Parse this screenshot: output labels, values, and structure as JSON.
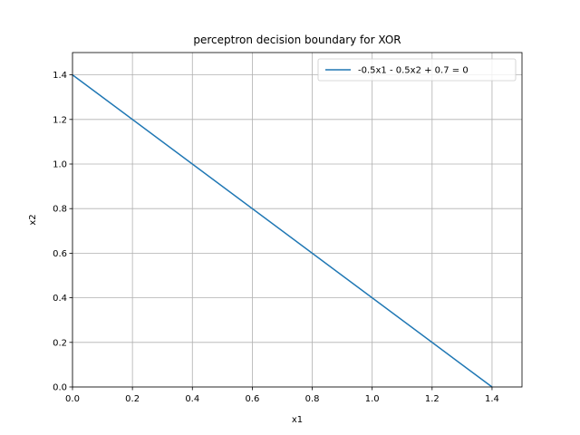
{
  "chart_data": {
    "type": "line",
    "title": "perceptron decision boundary for XOR",
    "xlabel": "x1",
    "ylabel": "x2",
    "xlim": [
      0,
      1.5
    ],
    "ylim": [
      0,
      1.5
    ],
    "grid": true,
    "legend_position": "top-right",
    "xticks": [
      "0.0",
      "0.2",
      "0.4",
      "0.6",
      "0.8",
      "1.0",
      "1.2",
      "1.4"
    ],
    "yticks": [
      "0.0",
      "0.2",
      "0.4",
      "0.6",
      "0.8",
      "1.0",
      "1.2",
      "1.4"
    ],
    "series": [
      {
        "name": "-0.5x1 - 0.5x2 + 0.7 = 0",
        "color": "#1f77b4",
        "x": [
          0.0,
          1.4
        ],
        "y": [
          1.4,
          0.0
        ]
      }
    ]
  }
}
